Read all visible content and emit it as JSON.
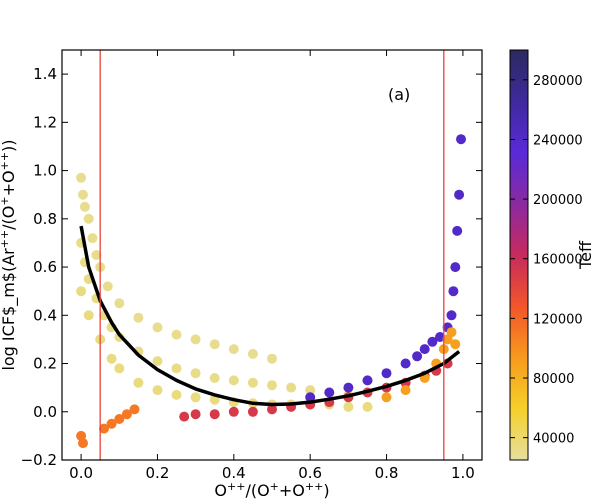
{
  "chart_data": {
    "type": "scatter",
    "panel_label": "(a)",
    "xlabel": "O$^{++}$/(O$^{+}$+O$^{++}$)",
    "ylabel": "log ICF$_m$(Ar$^{++}$/(O$^{+}$+O$^{++}$))",
    "xlim": [
      -0.05,
      1.05
    ],
    "ylim": [
      -0.2,
      1.5
    ],
    "xticks": [
      0.0,
      0.2,
      0.4,
      0.6,
      0.8,
      1.0
    ],
    "xtick_labels": [
      "0.0",
      "0.2",
      "0.4",
      "0.6",
      "0.8",
      "1.0"
    ],
    "yticks": [
      -0.2,
      0.0,
      0.2,
      0.4,
      0.6,
      0.8,
      1.0,
      1.2,
      1.4
    ],
    "ytick_labels": [
      "−0.2",
      "0.0",
      "0.2",
      "0.4",
      "0.6",
      "0.8",
      "1.0",
      "1.2",
      "1.4"
    ],
    "grid": false,
    "vertical_lines": {
      "x": [
        0.05,
        0.95
      ],
      "color": "#e8433a"
    },
    "fit_curve": {
      "color": "#000000",
      "x": [
        0.0,
        0.02,
        0.05,
        0.08,
        0.1,
        0.15,
        0.2,
        0.25,
        0.3,
        0.35,
        0.4,
        0.45,
        0.5,
        0.55,
        0.6,
        0.65,
        0.7,
        0.75,
        0.8,
        0.85,
        0.9,
        0.95,
        0.99
      ],
      "y": [
        0.77,
        0.6,
        0.46,
        0.37,
        0.32,
        0.235,
        0.175,
        0.13,
        0.095,
        0.07,
        0.05,
        0.035,
        0.03,
        0.032,
        0.04,
        0.052,
        0.066,
        0.085,
        0.105,
        0.13,
        0.16,
        0.2,
        0.25
      ]
    },
    "colorbar": {
      "label": "Teff",
      "range": [
        25000,
        300000
      ],
      "ticks": [
        40000,
        80000,
        120000,
        160000,
        200000,
        240000,
        280000
      ],
      "tick_labels": [
        "40000",
        "80000",
        "120000",
        "160000",
        "200000",
        "240000",
        "280000"
      ],
      "colormap": [
        "#e6dfa0",
        "#f5d02a",
        "#f79a1e",
        "#f2552b",
        "#c62b5c",
        "#8a2aa0",
        "#5a2ad8",
        "#3f2a9c",
        "#2b2a5e"
      ]
    },
    "series": [
      {
        "group": "low Teff band (upper)",
        "teff": 30000,
        "x": [
          0.0,
          0.005,
          0.01,
          0.02,
          0.03,
          0.04,
          0.05,
          0.07,
          0.1,
          0.15,
          0.2,
          0.25,
          0.3,
          0.35,
          0.4,
          0.45,
          0.5
        ],
        "y": [
          0.97,
          0.9,
          0.85,
          0.8,
          0.72,
          0.65,
          0.6,
          0.52,
          0.45,
          0.39,
          0.35,
          0.32,
          0.3,
          0.28,
          0.26,
          0.24,
          0.22
        ]
      },
      {
        "group": "low Teff band (middle)",
        "teff": 32000,
        "x": [
          0.0,
          0.01,
          0.02,
          0.04,
          0.06,
          0.08,
          0.1,
          0.15,
          0.2,
          0.25,
          0.3,
          0.35,
          0.4,
          0.45,
          0.5,
          0.55,
          0.6,
          0.65,
          0.7
        ],
        "y": [
          0.7,
          0.62,
          0.55,
          0.47,
          0.4,
          0.35,
          0.31,
          0.25,
          0.21,
          0.18,
          0.16,
          0.14,
          0.13,
          0.12,
          0.11,
          0.1,
          0.09,
          0.08,
          0.07
        ]
      },
      {
        "group": "low Teff band (lower)",
        "teff": 35000,
        "x": [
          0.0,
          0.02,
          0.05,
          0.08,
          0.1,
          0.15,
          0.2,
          0.25,
          0.3,
          0.35,
          0.4,
          0.45,
          0.5,
          0.55,
          0.6,
          0.65,
          0.7,
          0.75
        ],
        "y": [
          0.5,
          0.4,
          0.3,
          0.22,
          0.18,
          0.12,
          0.09,
          0.07,
          0.06,
          0.05,
          0.04,
          0.035,
          0.03,
          0.03,
          0.03,
          0.03,
          0.02,
          0.02
        ]
      },
      {
        "group": "negative outliers",
        "teff": 110000,
        "x": [
          0.0,
          0.005,
          0.06,
          0.08,
          0.1,
          0.12,
          0.14
        ],
        "y": [
          -0.1,
          -0.13,
          -0.07,
          -0.05,
          -0.03,
          -0.01,
          0.01
        ]
      },
      {
        "group": "hot stars lower branch",
        "teff": 150000,
        "x": [
          0.27,
          0.3,
          0.35,
          0.4,
          0.45,
          0.5,
          0.55,
          0.6,
          0.65,
          0.7,
          0.75,
          0.8,
          0.85,
          0.9,
          0.93,
          0.96
        ],
        "y": [
          -0.02,
          -0.01,
          -0.01,
          0.0,
          0.0,
          0.01,
          0.02,
          0.03,
          0.04,
          0.06,
          0.08,
          0.1,
          0.12,
          0.15,
          0.17,
          0.2
        ]
      },
      {
        "group": "hot stars upper branch",
        "teff": 240000,
        "x": [
          0.6,
          0.65,
          0.7,
          0.75,
          0.8,
          0.85,
          0.88,
          0.9,
          0.92,
          0.94,
          0.96,
          0.97,
          0.975,
          0.98,
          0.985,
          0.99,
          0.995
        ],
        "y": [
          0.06,
          0.08,
          0.1,
          0.13,
          0.16,
          0.2,
          0.23,
          0.26,
          0.29,
          0.31,
          0.35,
          0.4,
          0.5,
          0.6,
          0.75,
          0.9,
          1.13
        ]
      },
      {
        "group": "warm stars right edge",
        "teff": 90000,
        "x": [
          0.8,
          0.85,
          0.9,
          0.93,
          0.95,
          0.96,
          0.97,
          0.98
        ],
        "y": [
          0.06,
          0.09,
          0.14,
          0.2,
          0.26,
          0.3,
          0.33,
          0.28
        ]
      }
    ]
  }
}
